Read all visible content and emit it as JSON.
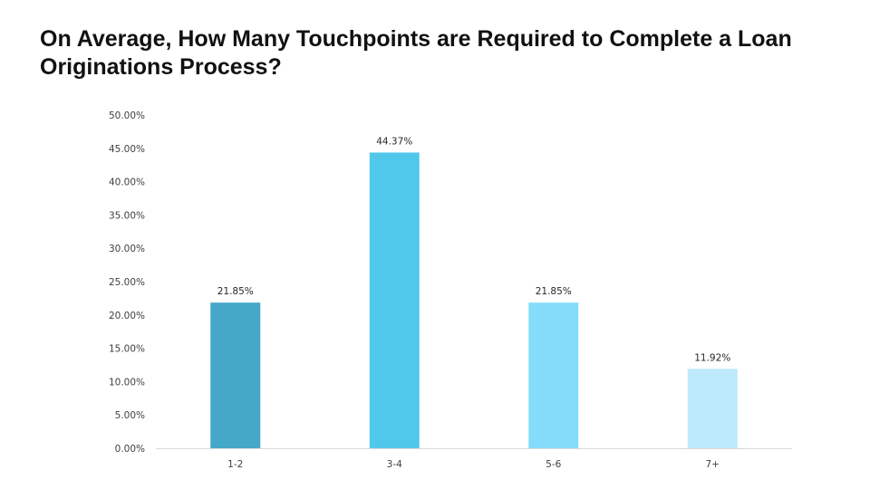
{
  "title": "On Average, How Many Touchpoints are Required to Complete a Loan Originations Process?",
  "chart_data": {
    "type": "bar",
    "categories": [
      "1-2",
      "3-4",
      "5-6",
      "7+"
    ],
    "values": [
      21.85,
      44.37,
      21.85,
      11.92
    ],
    "data_labels": [
      "21.85%",
      "44.37%",
      "21.85%",
      "11.92%"
    ],
    "bar_colors": [
      "#45a8c8",
      "#50c8ec",
      "#84dcfb",
      "#bde9fc"
    ],
    "ylim": [
      0,
      50
    ],
    "y_ticks": [
      {
        "value": 0,
        "label": "0.00%"
      },
      {
        "value": 5,
        "label": "5.00%"
      },
      {
        "value": 10,
        "label": "10.00%"
      },
      {
        "value": 15,
        "label": "15.00%"
      },
      {
        "value": 20,
        "label": "20.00%"
      },
      {
        "value": 25,
        "label": "25.00%"
      },
      {
        "value": 30,
        "label": "30.00%"
      },
      {
        "value": 35,
        "label": "35.00%"
      },
      {
        "value": 40,
        "label": "40.00%"
      },
      {
        "value": 45,
        "label": "45.00%"
      },
      {
        "value": 50,
        "label": "50.00%"
      }
    ],
    "xlabel": "",
    "ylabel": "",
    "grid": false,
    "legend": "none"
  }
}
